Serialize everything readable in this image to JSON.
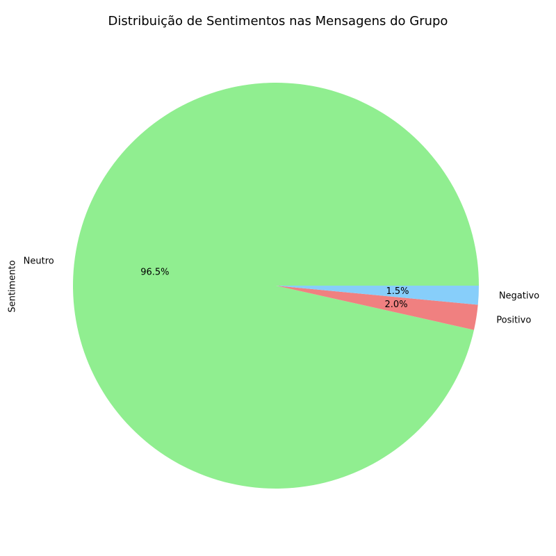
{
  "chart_data": {
    "type": "pie",
    "title": "Distribuição de Sentimentos nas Mensagens do Grupo",
    "ylabel": "Sentimento",
    "slices": [
      {
        "label": "Neutro",
        "value": 96.5,
        "pct_label": "96.5%",
        "color": "#90ee90"
      },
      {
        "label": "Positivo",
        "value": 2.0,
        "pct_label": "2.0%",
        "color": "#f08080"
      },
      {
        "label": "Negativo",
        "value": 1.5,
        "pct_label": "1.5%",
        "color": "#87cefa"
      }
    ],
    "start_angle_deg": 0,
    "direction": "counterclockwise"
  }
}
